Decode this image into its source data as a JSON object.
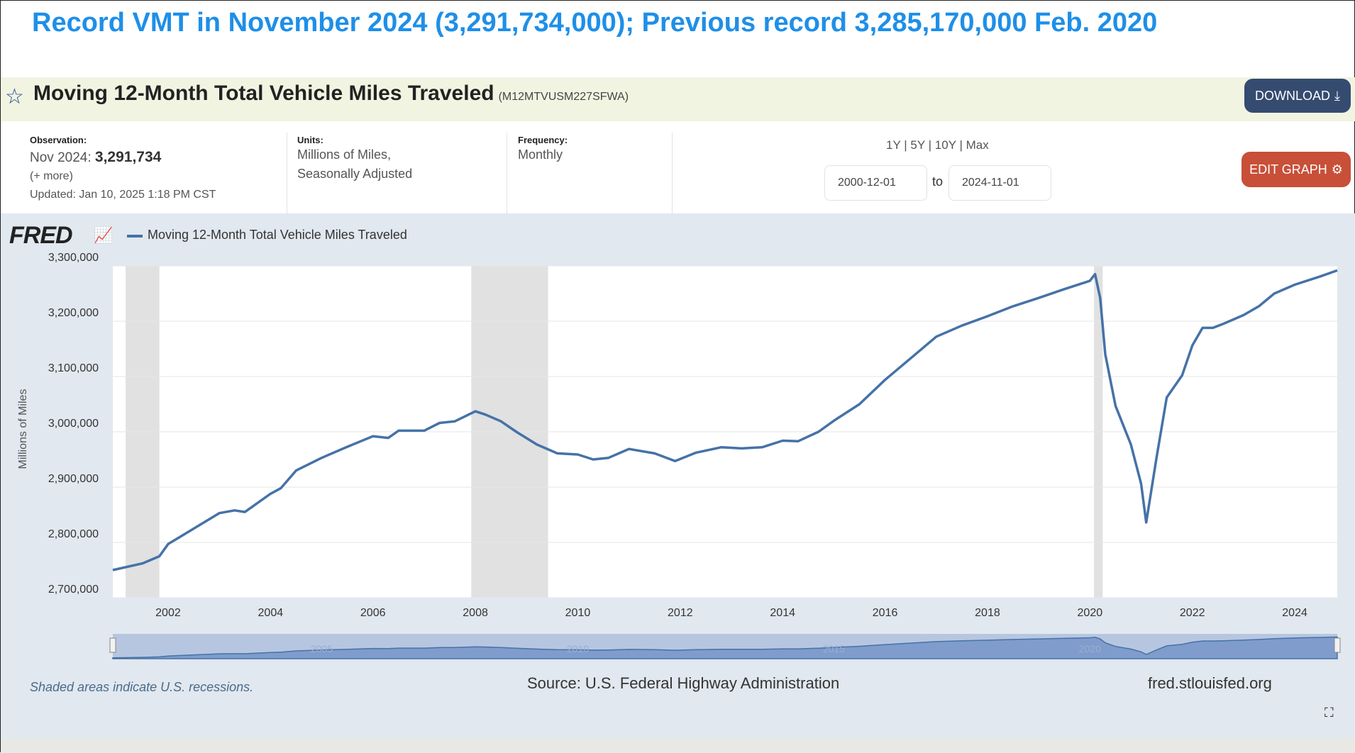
{
  "headline": "Record VMT in November 2024 (3,291,734,000); Previous record 3,285,170,000 Feb. 2020",
  "header": {
    "title": "Moving 12-Month Total Vehicle Miles Traveled",
    "series_id": "(M12MTVUSM227SFWA)",
    "download_label": "DOWNLOAD",
    "edit_label": "EDIT GRAPH"
  },
  "info": {
    "obs_label": "Observation:",
    "obs_date": "Nov 2024:",
    "obs_value": "3,291,734",
    "more": "(+ more)",
    "updated": "Updated: Jan 10, 2025 1:18 PM CST",
    "units_label": "Units:",
    "units_1": "Millions of Miles,",
    "units_2": "Seasonally Adjusted",
    "freq_label": "Frequency:",
    "freq": "Monthly"
  },
  "range": {
    "options": [
      "1Y",
      "5Y",
      "10Y",
      "Max"
    ],
    "sep": "|",
    "start": "2000-12-01",
    "to": "to",
    "end": "2024-11-01"
  },
  "fred_logo": "FRED",
  "footer": {
    "recession_note": "Shaded areas indicate U.S. recessions.",
    "source": "Source: U.S. Federal Highway Administration",
    "site": "fred.stlouisfed.org"
  },
  "colors": {
    "line": "#4572a7",
    "recession": "#e1e1e1",
    "headline": "#1e8fe8"
  },
  "chart_data": {
    "type": "line",
    "title": "Moving 12-Month Total Vehicle Miles Traveled",
    "legend": "Moving 12-Month Total Vehicle Miles Traveled",
    "legend_position": "top-left",
    "ylabel": "Millions of Miles",
    "xlabel": "",
    "ylim": [
      2700000,
      3300000
    ],
    "xlim": [
      2000.92,
      2024.83
    ],
    "yticks": [
      2700000,
      2800000,
      2900000,
      3000000,
      3100000,
      3200000,
      3300000
    ],
    "ytick_labels": [
      "2,700,000",
      "2,800,000",
      "2,900,000",
      "3,000,000",
      "3,100,000",
      "3,200,000",
      "3,300,000"
    ],
    "xticks": [
      2002,
      2004,
      2006,
      2008,
      2010,
      2012,
      2014,
      2016,
      2018,
      2020,
      2022,
      2024
    ],
    "xtick_labels": [
      "2002",
      "2004",
      "2006",
      "2008",
      "2010",
      "2012",
      "2014",
      "2016",
      "2018",
      "2020",
      "2022",
      "2024"
    ],
    "navigator_labels": [
      "2005",
      "2010",
      "2015",
      "2020"
    ],
    "grid": true,
    "recessions": [
      [
        2001.17,
        2001.83
      ],
      [
        2007.92,
        2009.42
      ],
      [
        2020.08,
        2020.25
      ]
    ],
    "x": [
      2000.92,
      2001.5,
      2001.83,
      2002.0,
      2002.5,
      2003.0,
      2003.3,
      2003.5,
      2004.0,
      2004.2,
      2004.5,
      2005.0,
      2005.5,
      2006.0,
      2006.3,
      2006.5,
      2007.0,
      2007.3,
      2007.6,
      2008.0,
      2008.2,
      2008.5,
      2008.8,
      2009.2,
      2009.6,
      2010.0,
      2010.3,
      2010.6,
      2011.0,
      2011.5,
      2011.9,
      2012.3,
      2012.8,
      2013.2,
      2013.6,
      2014.0,
      2014.3,
      2014.7,
      2015.0,
      2015.5,
      2016.0,
      2016.5,
      2017.0,
      2017.5,
      2018.0,
      2018.5,
      2019.0,
      2019.5,
      2019.9,
      2020.0,
      2020.1,
      2020.2,
      2020.3,
      2020.5,
      2020.8,
      2021.0,
      2021.1,
      2021.3,
      2021.5,
      2021.8,
      2022.0,
      2022.2,
      2022.4,
      2022.6,
      2023.0,
      2023.3,
      2023.6,
      2024.0,
      2024.5,
      2024.83
    ],
    "y": [
      2750000,
      2762000,
      2775000,
      2797000,
      2825000,
      2853000,
      2858000,
      2855000,
      2888000,
      2898000,
      2930000,
      2953000,
      2973000,
      2992000,
      2989000,
      3002000,
      3002000,
      3016000,
      3019000,
      3037000,
      3031000,
      3019000,
      3000000,
      2977000,
      2961000,
      2959000,
      2950000,
      2953000,
      2969000,
      2961000,
      2947000,
      2962000,
      2972000,
      2970000,
      2972000,
      2984000,
      2983000,
      3000000,
      3020000,
      3050000,
      3094000,
      3133000,
      3172000,
      3192000,
      3209000,
      3227000,
      3242000,
      3258000,
      3270000,
      3273000,
      3285170,
      3242000,
      3140000,
      3047000,
      2977000,
      2906000,
      2836000,
      2953000,
      3062000,
      3102000,
      3156000,
      3188000,
      3188000,
      3195000,
      3211000,
      3227000,
      3250000,
      3266000,
      3281000,
      3291734
    ]
  }
}
